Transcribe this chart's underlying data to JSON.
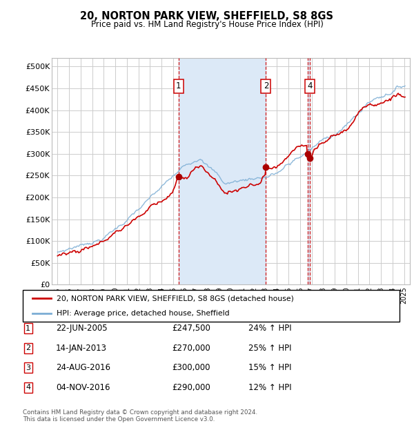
{
  "title": "20, NORTON PARK VIEW, SHEFFIELD, S8 8GS",
  "subtitle": "Price paid vs. HM Land Registry's House Price Index (HPI)",
  "ylabel_ticks": [
    "£0",
    "£50K",
    "£100K",
    "£150K",
    "£200K",
    "£250K",
    "£300K",
    "£350K",
    "£400K",
    "£450K",
    "£500K"
  ],
  "ytick_values": [
    0,
    50000,
    100000,
    150000,
    200000,
    250000,
    300000,
    350000,
    400000,
    450000,
    500000
  ],
  "ylim": [
    0,
    520000
  ],
  "xlim_min": 1994.5,
  "xlim_max": 2025.5,
  "background_color": "#ffffff",
  "plot_bg_color": "#ffffff",
  "grid_color": "#cccccc",
  "shaded_regions": [
    {
      "x_start": 2005.47,
      "x_end": 2013.04
    },
    {
      "x_start": 2016.64,
      "x_end": 2016.84
    }
  ],
  "shaded_color": "#dce9f7",
  "legend_line1": "20, NORTON PARK VIEW, SHEFFIELD, S8 8GS (detached house)",
  "legend_line2": "HPI: Average price, detached house, Sheffield",
  "transactions": [
    {
      "id": 1,
      "date": "22-JUN-2005",
      "price": 247500,
      "pct": "24%",
      "direction": "↑",
      "year": 2005.47
    },
    {
      "id": 2,
      "date": "14-JAN-2013",
      "price": 270000,
      "pct": "25%",
      "direction": "↑",
      "year": 2013.04
    },
    {
      "id": 3,
      "date": "24-AUG-2016",
      "price": 300000,
      "pct": "15%",
      "direction": "↑",
      "year": 2016.64
    },
    {
      "id": 4,
      "date": "04-NOV-2016",
      "price": 290000,
      "pct": "12%",
      "direction": "↑",
      "year": 2016.84
    }
  ],
  "footer": "Contains HM Land Registry data © Crown copyright and database right 2024.\nThis data is licensed under the Open Government Licence v3.0.",
  "hpi_color": "#7badd4",
  "price_color": "#cc0000",
  "vline_color": "#cc0000",
  "box_color": "#cc0000",
  "dot_color": "#aa0000"
}
